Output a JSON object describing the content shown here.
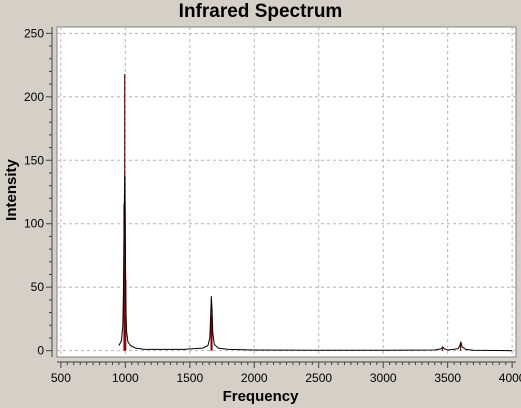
{
  "chart_data": {
    "type": "line",
    "title": "Infrared Spectrum",
    "xlabel": "Frequency",
    "ylabel": "Intensity",
    "xlim": [
      470,
      4030
    ],
    "ylim": [
      -5,
      255
    ],
    "x_ticks": [
      500,
      1000,
      1500,
      2000,
      2500,
      3000,
      3500,
      4000
    ],
    "y_ticks": [
      0,
      50,
      100,
      150,
      200,
      250
    ],
    "grid": true,
    "colors": {
      "background": "#d4d0c8",
      "plot_area": "#ffffff",
      "spectrum_line": "#000000",
      "stick_bars": "#8b0000",
      "grid": "#b4b4b4"
    },
    "stick_peaks": [
      {
        "x": 995,
        "y": 218
      },
      {
        "x": 990,
        "y": 116
      },
      {
        "x": 1003,
        "y": 56
      },
      {
        "x": 1665,
        "y": 33
      },
      {
        "x": 1672,
        "y": 27
      },
      {
        "x": 3460,
        "y": 2
      },
      {
        "x": 3600,
        "y": 5
      }
    ],
    "series": [
      {
        "x": [
          950,
          970,
          980,
          985,
          990,
          993,
          996,
          999,
          1002,
          1005,
          1010,
          1020,
          1040,
          1080,
          1150,
          1300,
          1450,
          1600,
          1640,
          1655,
          1662,
          1667,
          1672,
          1678,
          1690,
          1720,
          1800,
          2000,
          2500,
          3000,
          3400,
          3450,
          3462,
          3475,
          3500,
          3580,
          3595,
          3602,
          3612,
          3640,
          3700,
          4000
        ],
        "y": [
          4,
          8,
          20,
          45,
          90,
          120,
          138,
          110,
          60,
          30,
          15,
          7,
          4,
          2,
          1,
          1,
          1,
          2,
          4,
          10,
          28,
          43,
          33,
          14,
          5,
          2,
          1,
          0.5,
          0.3,
          0.3,
          0.5,
          1.5,
          3,
          1.5,
          0.5,
          1.5,
          4,
          7,
          3,
          1,
          0.3,
          0
        ]
      }
    ]
  }
}
